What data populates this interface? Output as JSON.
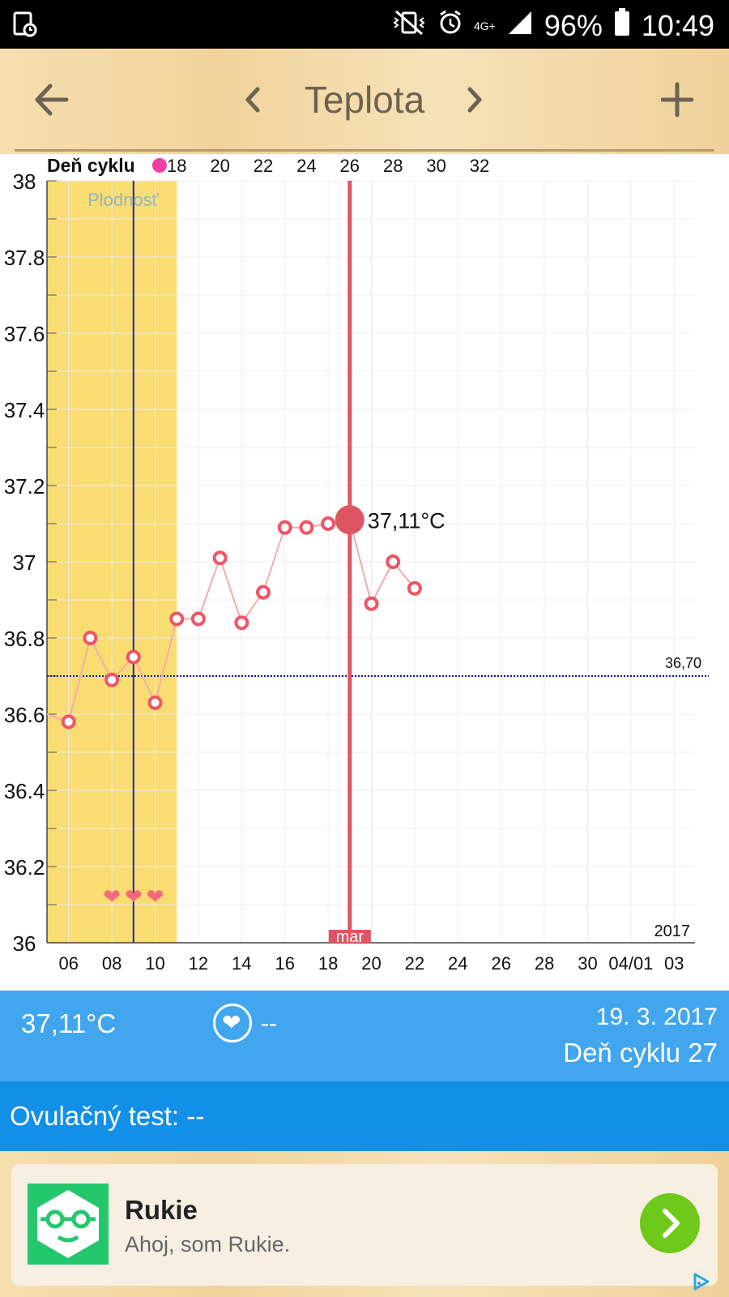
{
  "status_bar": {
    "network": "4G+",
    "battery": "96%",
    "time": "10:49"
  },
  "toolbar": {
    "title": "Teplota"
  },
  "chart_data": {
    "type": "line",
    "y_ticks": [
      "38",
      "37.8",
      "37.6",
      "37.4",
      "37.2",
      "37",
      "36.8",
      "36.6",
      "36.4",
      "36.2",
      "36"
    ],
    "ylim": [
      36,
      38
    ],
    "x_date_ticks": [
      "06",
      "08",
      "10",
      "12",
      "14",
      "16",
      "18",
      "20",
      "22",
      "24",
      "26",
      "28",
      "30",
      "04/01",
      "03"
    ],
    "cycle_label": "Deň cyklu",
    "cycle_ticks": [
      "18",
      "20",
      "22",
      "24",
      "26",
      "28",
      "30",
      "32"
    ],
    "fertility_label": "Plodnosť",
    "coverline_label": "36,70",
    "coverline_value": 36.7,
    "year_label": "2017",
    "selected_label": "37,11°C",
    "month_label": "mar",
    "points": [
      {
        "date": "05.03",
        "value": 36.6
      },
      {
        "date": "06.03",
        "value": 36.58
      },
      {
        "date": "07.03",
        "value": 36.8
      },
      {
        "date": "08.03",
        "value": 36.69
      },
      {
        "date": "09.03",
        "value": 36.75
      },
      {
        "date": "10.03",
        "value": 36.63
      },
      {
        "date": "11.03",
        "value": 36.85
      },
      {
        "date": "12.03",
        "value": 36.85
      },
      {
        "date": "13.03",
        "value": 37.01
      },
      {
        "date": "14.03",
        "value": 36.84
      },
      {
        "date": "15.03",
        "value": 36.92
      },
      {
        "date": "16.03",
        "value": 37.09
      },
      {
        "date": "17.03",
        "value": 37.09
      },
      {
        "date": "18.03",
        "value": 37.1
      },
      {
        "date": "19.03",
        "value": 37.11
      },
      {
        "date": "20.03",
        "value": 36.89
      },
      {
        "date": "21.03",
        "value": 37.0
      },
      {
        "date": "22.03",
        "value": 36.93
      }
    ],
    "fertile_window": [
      "05.03",
      "11.03"
    ],
    "ovulation_day": "09.03",
    "heart_days": [
      "08.03",
      "09.03",
      "10.03"
    ],
    "selected_day": "19.03",
    "colors": {
      "fertile": "#fadd72",
      "line": "#f5a9a9",
      "point": "#ee5666",
      "selected": "#df5463",
      "ovulation_line": "#1628c8",
      "coverline": "#14148a"
    }
  },
  "info": {
    "temperature": "37,11°C",
    "heart_value": "--",
    "date": "19. 3. 2017",
    "cycle_day": "Deň cyklu 27"
  },
  "ovulation": {
    "text": "Ovulačný test: --"
  },
  "ad": {
    "name": "Rukie",
    "description": "Ahoj, som Rukie."
  }
}
